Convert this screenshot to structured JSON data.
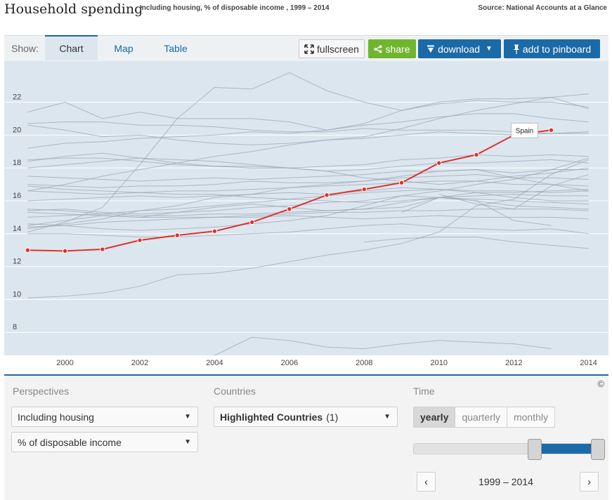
{
  "header": {
    "title": "Household spending",
    "subtitle": "Including housing, % of disposable income , 1999 – 2014",
    "source": "Source: National Accounts at a Glance"
  },
  "toolbar": {
    "show_label": "Show:",
    "tabs": [
      "Chart",
      "Map",
      "Table"
    ],
    "active_tab": "Chart",
    "fullscreen_label": "fullscreen",
    "share_label": "share",
    "download_label": "download",
    "pinboard_label": "add to pinboard"
  },
  "colors": {
    "highlight": "#e0312b",
    "background_lines": "#9aa8b4",
    "plot_bg": "#dce6ef",
    "accent": "#1a6aa8",
    "share": "#6fb62e"
  },
  "chart_data": {
    "type": "line",
    "title": "",
    "xlabel": "",
    "ylabel": "",
    "x": [
      1999,
      2000,
      2001,
      2002,
      2003,
      2004,
      2005,
      2006,
      2007,
      2008,
      2009,
      2010,
      2011,
      2012,
      2013,
      2014
    ],
    "xticks": [
      2000,
      2002,
      2004,
      2006,
      2008,
      2010,
      2012,
      2014
    ],
    "yticks": [
      8,
      10,
      12,
      14,
      16,
      18,
      20,
      22
    ],
    "xlim": [
      1998.9,
      2014.1
    ],
    "ylim": [
      6.6,
      24.5
    ],
    "grid": true,
    "highlight_series": {
      "name": "Spain",
      "values": [
        13.0,
        12.95,
        13.05,
        13.6,
        13.9,
        14.15,
        14.7,
        15.5,
        16.35,
        16.7,
        17.1,
        18.3,
        18.8,
        20.0,
        20.3,
        null
      ]
    },
    "series": [
      {
        "values": [
          21.4,
          22.0,
          21.0,
          21.4,
          21.0,
          21.0,
          21.0,
          20.8,
          20.3,
          20.6,
          20.8,
          21.1,
          21.3,
          21.3,
          21.0,
          20.8
        ]
      },
      {
        "values": [
          20.7,
          20.8,
          20.8,
          20.6,
          20.6,
          20.5,
          20.3,
          20.2,
          20.2,
          20.4,
          20.3,
          20.3,
          20.3,
          20.2,
          20.1,
          20.1
        ]
      },
      {
        "values": [
          20.6,
          20.3,
          19.9,
          20.0,
          19.7,
          19.5,
          19.4,
          19.5,
          19.7,
          19.8,
          20.0,
          20.2,
          20.1,
          20.0,
          20.1,
          20.2
        ]
      },
      {
        "values": [
          18.4,
          18.7,
          18.9,
          18.6,
          18.3,
          18.1,
          18.0,
          18.0,
          18.1,
          18.2,
          18.5,
          18.6,
          18.8,
          18.7,
          18.8,
          18.7
        ]
      },
      {
        "values": [
          18.5,
          18.6,
          18.6,
          18.4,
          18.2,
          18.1,
          18.1,
          18.0,
          17.8,
          17.9,
          18.1,
          18.3,
          18.3,
          18.4,
          18.5,
          18.3
        ]
      },
      {
        "values": [
          17.5,
          17.4,
          17.3,
          17.2,
          17.3,
          17.4,
          17.3,
          17.4,
          17.5,
          17.6,
          17.8,
          17.8,
          17.9,
          17.7,
          17.9,
          17.9
        ]
      },
      {
        "values": [
          17.0,
          16.9,
          16.8,
          16.9,
          16.9,
          17.0,
          17.2,
          17.1,
          17.1,
          17.2,
          17.4,
          17.5,
          17.6,
          17.4,
          17.4,
          17.3
        ]
      },
      {
        "values": [
          16.6,
          16.5,
          16.4,
          16.5,
          16.6,
          16.6,
          16.7,
          16.8,
          16.9,
          17.0,
          17.1,
          17.2,
          17.2,
          17.0,
          17.0,
          16.9
        ]
      },
      {
        "values": [
          16.0,
          16.1,
          16.2,
          16.3,
          16.2,
          16.3,
          16.4,
          16.5,
          16.4,
          16.6,
          16.8,
          16.7,
          16.6,
          16.6,
          16.5,
          16.6
        ]
      },
      {
        "values": [
          15.4,
          15.5,
          15.3,
          15.2,
          15.3,
          15.4,
          15.6,
          15.7,
          15.9,
          16.0,
          16.3,
          16.2,
          16.1,
          16.0,
          15.9,
          15.8
        ]
      },
      {
        "values": [
          15.0,
          15.1,
          15.2,
          15.4,
          15.5,
          15.7,
          15.9,
          16.1,
          16.3,
          16.5,
          16.6,
          16.7,
          16.5,
          16.2,
          16.0,
          16.0
        ]
      },
      {
        "values": [
          14.5,
          14.8,
          15.1,
          15.0,
          15.3,
          15.6,
          15.8,
          15.6,
          15.4,
          15.5,
          15.9,
          16.2,
          16.0,
          15.7,
          15.6,
          15.5
        ]
      },
      {
        "values": [
          14.3,
          14.6,
          14.9,
          15.4,
          15.7,
          16.2,
          16.4,
          16.8,
          17.0,
          17.2,
          17.5,
          17.8,
          17.9,
          17.4,
          17.0,
          16.6
        ]
      },
      {
        "values": [
          16.6,
          17.0,
          17.5,
          17.9,
          18.3,
          18.7,
          19.0,
          19.4,
          19.7,
          19.9,
          20.4,
          21.0,
          21.5,
          21.9,
          22.3,
          22.5
        ]
      },
      {
        "values": [
          19.2,
          19.5,
          19.6,
          19.8,
          19.9,
          20.0,
          20.2,
          20.1,
          20.3,
          20.7,
          21.5,
          22.0,
          22.2,
          22.2,
          22.3,
          21.6
        ]
      },
      {
        "values": [
          14.1,
          14.7,
          15.6,
          18.2,
          21.0,
          22.9,
          22.8,
          23.8,
          22.7,
          22.0,
          21.5,
          21.9,
          22.1,
          22.0,
          22.0,
          21.7
        ]
      },
      {
        "values": [
          15.5,
          15.4,
          15.2,
          15.1,
          15.1,
          15.2,
          15.2,
          15.3,
          15.4,
          15.5,
          15.6,
          16.2,
          16.5,
          16.5,
          16.6,
          16.7
        ]
      },
      {
        "values": [
          14.4,
          14.5,
          14.7,
          14.8,
          14.9,
          15.0,
          15.1,
          15.2,
          15.3,
          15.3,
          15.4,
          15.4,
          15.5,
          15.5,
          15.5,
          15.4
        ]
      },
      {
        "values": [
          15.3,
          15.2,
          15.1,
          15.0,
          15.0,
          15.0,
          15.0,
          15.1,
          15.0,
          14.9,
          15.0,
          15.1,
          15.0,
          15.0,
          15.0,
          14.9
        ]
      },
      {
        "values": [
          16.9,
          16.7,
          16.6,
          16.5,
          16.4,
          16.4,
          16.2,
          16.1,
          16.0,
          15.9,
          16.0,
          16.2,
          16.3,
          16.4,
          16.3,
          16.3
        ]
      },
      {
        "values": [
          14.6,
          14.5,
          14.3,
          14.2,
          14.3,
          14.4,
          14.6,
          14.8,
          15.1,
          15.7,
          16.3,
          16.6,
          17.0,
          17.3,
          17.9,
          18.6
        ]
      },
      {
        "values": [
          14.0,
          14.0,
          13.9,
          13.8,
          13.8,
          13.9,
          14.0,
          14.1,
          14.3,
          14.5,
          14.6,
          14.4,
          14.3,
          14.2,
          14.3,
          14.0
        ]
      },
      {
        "values": [
          null,
          null,
          null,
          null,
          null,
          null,
          null,
          null,
          null,
          13.5,
          13.7,
          13.8,
          13.8,
          13.5,
          13.3,
          13.1
        ]
      },
      {
        "values": [
          10.1,
          10.2,
          10.4,
          10.8,
          11.5,
          11.6,
          11.9,
          12.3,
          12.7,
          13.0,
          13.4,
          14.1,
          15.7,
          16.1,
          17.6,
          18.5
        ]
      },
      {
        "values": [
          null,
          null,
          null,
          null,
          null,
          6.6,
          7.7,
          7.5,
          7.1,
          7.0,
          7.3,
          7.5,
          7.4,
          7.3,
          7.0,
          null
        ]
      },
      {
        "values": [
          null,
          null,
          null,
          null,
          null,
          null,
          null,
          null,
          null,
          null,
          15.3,
          16.2,
          16.0,
          14.8,
          14.5,
          null
        ]
      },
      {
        "values": [
          null,
          null,
          null,
          null,
          null,
          null,
          null,
          null,
          null,
          null,
          null,
          16.4,
          15.8,
          15.5,
          16.9,
          17.6
        ]
      },
      {
        "values": [
          18.0,
          18.2,
          18.4,
          18.6,
          18.5,
          18.4,
          18.2,
          18.0,
          17.8,
          17.4,
          17.2,
          17.0,
          17.2,
          17.5,
          17.7,
          18.0
        ]
      }
    ]
  },
  "controls": {
    "perspectives_label": "Perspectives",
    "perspective_1": "Including housing",
    "perspective_2": "% of disposable income",
    "countries_label": "Countries",
    "countries_value": "Highlighted Countries",
    "countries_count": "(1)",
    "time_label": "Time",
    "time_options": [
      "yearly",
      "quarterly",
      "monthly"
    ],
    "time_selected": "yearly",
    "range_label": "1999 – 2014",
    "range_start_fraction": 0.65,
    "range_end_fraction": 1.0,
    "copyright": "©"
  }
}
